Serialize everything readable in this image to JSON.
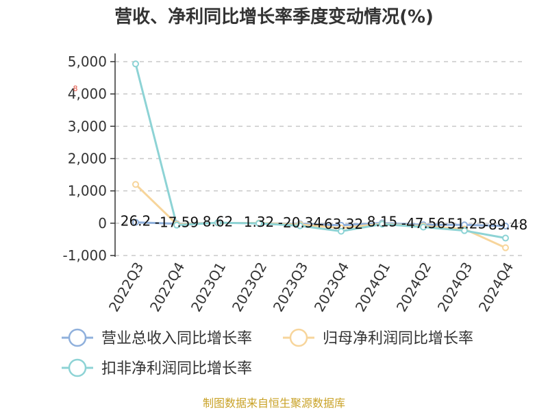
{
  "chart_data": {
    "type": "line",
    "title": "营收、净利同比增长率季度变动情况(%)",
    "categories": [
      "2022Q3",
      "2022Q4",
      "2023Q1",
      "2023Q2",
      "2023Q3",
      "2023Q4",
      "2024Q1",
      "2024Q2",
      "2024Q3",
      "2024Q4"
    ],
    "ylim": [
      -1000,
      5000
    ],
    "yticks": [
      5000,
      4000,
      3000,
      2000,
      1000,
      0,
      -1000
    ],
    "ytick_labels": [
      "5,000",
      "4,000",
      "3,000",
      "2,000",
      "1,000",
      "0",
      "-1,000"
    ],
    "grid": true,
    "legend_position": "bottom",
    "series": [
      {
        "name": "营业总收入同比增长率",
        "color": "#8fb0dc",
        "values": [
          26.2,
          -17.59,
          8.62,
          1.32,
          -20.34,
          -63.32,
          8.15,
          -47.56,
          -51.25,
          -89.48
        ]
      },
      {
        "name": "归母净利润同比增长率",
        "color": "#f7d59b",
        "values": [
          1200,
          -30,
          10,
          5,
          -40,
          -150,
          -20,
          -90,
          -180,
          -760
        ]
      },
      {
        "name": "扣非净利润同比增长率",
        "color": "#8dd3d5",
        "values": [
          4930,
          -60,
          15,
          -5,
          -80,
          -250,
          -30,
          -120,
          -230,
          -460
        ]
      }
    ],
    "data_labels": [
      "26.2",
      "-17.59",
      "8.62",
      "1.32",
      "-20.34",
      "-63.32",
      "8.15",
      "-47.56",
      "-51.25",
      "-89.48"
    ]
  },
  "source": "制图数据来自恒生聚源数据库",
  "annotation": "8"
}
